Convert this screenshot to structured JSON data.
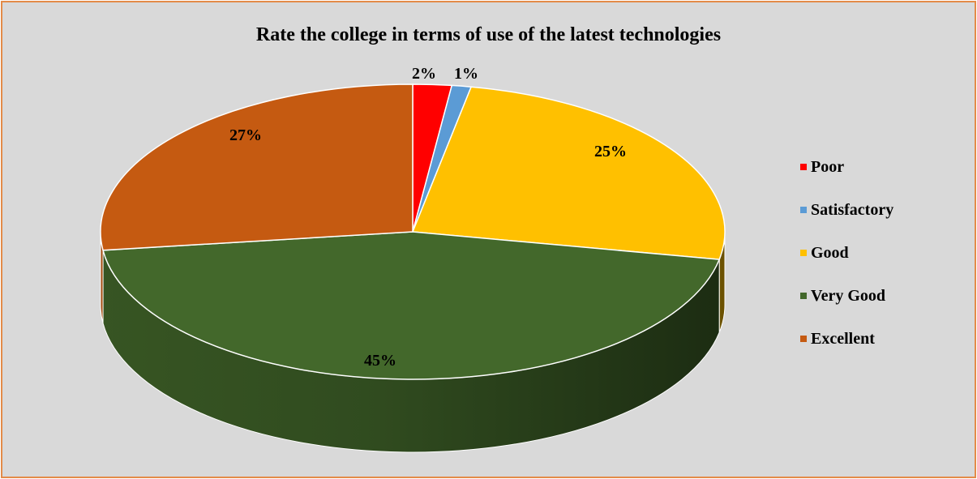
{
  "chart_data": {
    "type": "pie",
    "title": "Rate the college in terms of use of the latest technologies",
    "categories": [
      "Poor",
      "Satisfactory",
      "Good",
      "Very Good",
      "Excellent"
    ],
    "values": [
      2,
      1,
      25,
      45,
      27
    ],
    "data_labels": [
      "2%",
      "1%",
      "25%",
      "45%",
      "27%"
    ],
    "colors": [
      "#ff0000",
      "#5b9bd5",
      "#ffc000",
      "#43682b",
      "#c55a11"
    ],
    "legend_position": "right",
    "three_d": true
  }
}
